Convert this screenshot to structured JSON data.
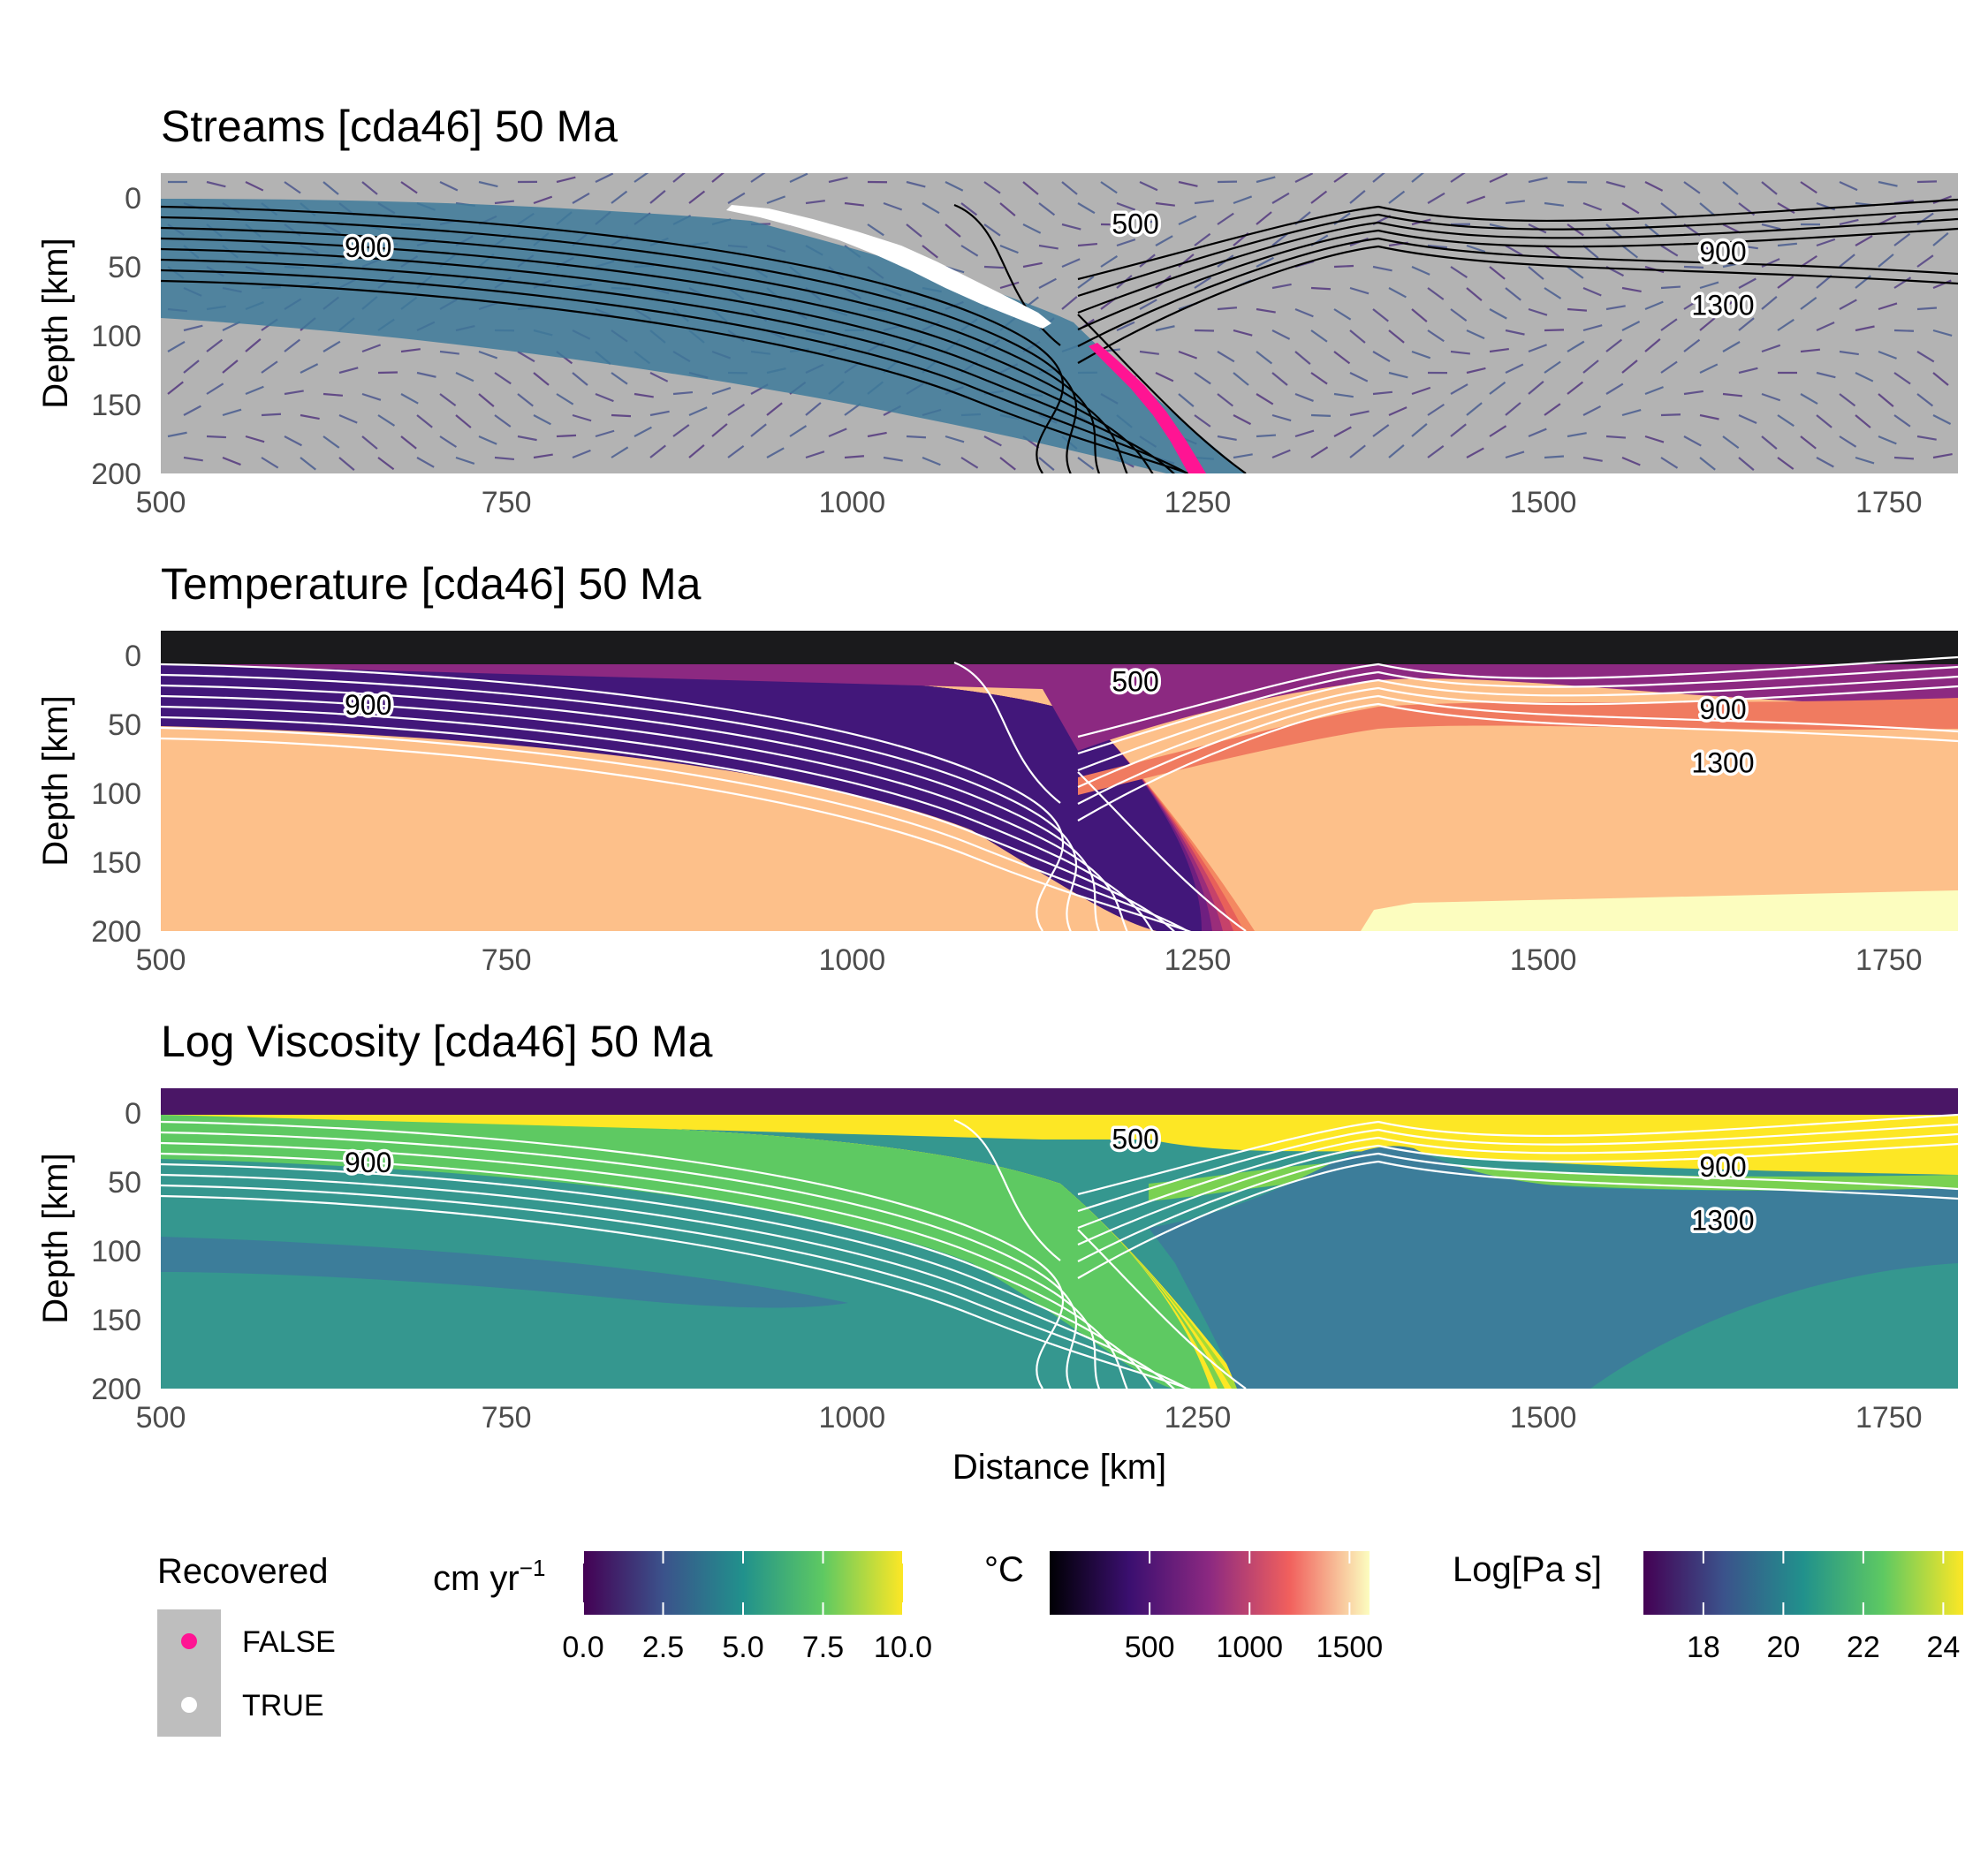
{
  "chart_data": [
    {
      "type": "heatmap",
      "variable": "streamlines",
      "title": "Streams  [cda46] 50 Ma",
      "xlabel": "",
      "ylabel": "Depth [km]",
      "xlim": [
        500,
        1800
      ],
      "ylim": [
        200,
        -18
      ],
      "x_ticks": [
        "500",
        "750",
        "1000",
        "1250",
        "1500",
        "1750"
      ],
      "y_ticks": [
        "0",
        "50",
        "100",
        "150",
        "200"
      ],
      "contour_labels": [
        {
          "text": "900",
          "x": 650,
          "y": 36
        },
        {
          "text": "500",
          "x": 1205,
          "y": 19
        },
        {
          "text": "900",
          "x": 1630,
          "y": 39
        },
        {
          "text": "1300",
          "x": 1630,
          "y": 78
        }
      ],
      "recovered_markers": {
        "TRUE_along_slab_km": [
          [
            900,
            0
          ],
          [
            1000,
            22
          ],
          [
            1100,
            60
          ],
          [
            1170,
            110
          ]
        ],
        "FALSE_along_slab_km": [
          [
            1170,
            112
          ],
          [
            1230,
            175
          ],
          [
            1255,
            200
          ]
        ]
      }
    },
    {
      "type": "heatmap",
      "variable": "temperature",
      "title": "Temperature [cda46] 50 Ma",
      "xlabel": "",
      "ylabel": "Depth [km]",
      "xlim": [
        500,
        1800
      ],
      "ylim": [
        200,
        -18
      ],
      "x_ticks": [
        "500",
        "750",
        "1000",
        "1250",
        "1500",
        "1750"
      ],
      "y_ticks": [
        "0",
        "50",
        "100",
        "150",
        "200"
      ],
      "contour_labels": [
        {
          "text": "900",
          "x": 650,
          "y": 36
        },
        {
          "text": "500",
          "x": 1205,
          "y": 19
        },
        {
          "text": "900",
          "x": 1630,
          "y": 39
        },
        {
          "text": "1300",
          "x": 1630,
          "y": 78
        }
      ]
    },
    {
      "type": "heatmap",
      "variable": "log_viscosity",
      "title": "Log Viscosity [cda46] 50 Ma",
      "xlabel": "Distance [km]",
      "ylabel": "Depth [km]",
      "xlim": [
        500,
        1800
      ],
      "ylim": [
        200,
        -18
      ],
      "x_ticks": [
        "500",
        "750",
        "1000",
        "1250",
        "1500",
        "1750"
      ],
      "y_ticks": [
        "0",
        "50",
        "100",
        "150",
        "200"
      ],
      "contour_labels": [
        {
          "text": "900",
          "x": 650,
          "y": 36
        },
        {
          "text": "500",
          "x": 1205,
          "y": 19
        },
        {
          "text": "900",
          "x": 1630,
          "y": 39
        },
        {
          "text": "1300",
          "x": 1630,
          "y": 78
        }
      ]
    }
  ],
  "legends": {
    "recovered": {
      "title": "Recovered",
      "entries": [
        {
          "label": "FALSE",
          "color": "#ff1493"
        },
        {
          "label": "TRUE",
          "color": "#ffffff"
        }
      ]
    },
    "velocity": {
      "title": "cm yr",
      "title_sup": "−1",
      "range": [
        0,
        10
      ],
      "ticks": [
        "0.0",
        "2.5",
        "5.0",
        "7.5",
        "10.0"
      ],
      "palette": "viridis"
    },
    "temperature": {
      "title": "°C",
      "range": [
        0,
        1600
      ],
      "ticks": [
        "500",
        "1000",
        "1500"
      ],
      "palette": "magma"
    },
    "viscosity": {
      "title": "Log[Pa s]",
      "range": [
        16.5,
        24.5
      ],
      "ticks": [
        "18",
        "20",
        "22",
        "24"
      ],
      "palette": "viridis"
    }
  },
  "colors": {
    "panel_background": "#b3b3b3",
    "recovered_false": "#ff1493",
    "recovered_true": "#ffffff",
    "contour_streams": "#000000",
    "contour_other": "#ffffff"
  }
}
